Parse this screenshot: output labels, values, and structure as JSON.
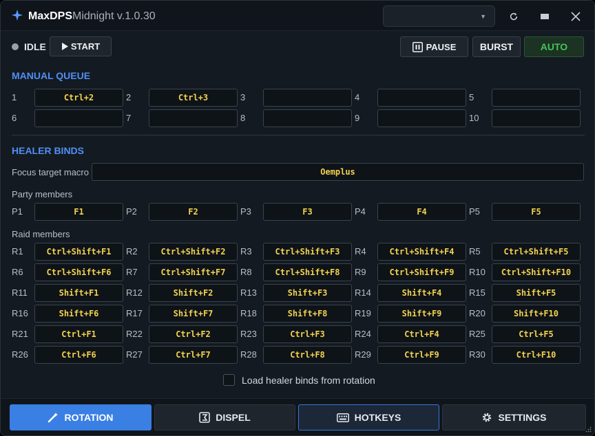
{
  "app": {
    "name": "MaxDPS",
    "subtitle": "Midnight v.1.0.30"
  },
  "profile_select": {
    "value": ""
  },
  "status": {
    "text": "IDLE"
  },
  "buttons": {
    "start": "START",
    "pause": "PAUSE",
    "burst": "BURST",
    "auto": "AUTO"
  },
  "manual_queue": {
    "title": "MANUAL QUEUE",
    "slots": [
      {
        "num": "1",
        "key": "Ctrl+2"
      },
      {
        "num": "2",
        "key": "Ctrl+3"
      },
      {
        "num": "3",
        "key": ""
      },
      {
        "num": "4",
        "key": ""
      },
      {
        "num": "5",
        "key": ""
      },
      {
        "num": "6",
        "key": ""
      },
      {
        "num": "7",
        "key": ""
      },
      {
        "num": "8",
        "key": ""
      },
      {
        "num": "9",
        "key": ""
      },
      {
        "num": "10",
        "key": ""
      }
    ]
  },
  "healer_binds": {
    "title": "HEALER BINDS",
    "focus_label": "Focus target macro",
    "focus_value": "Oemplus",
    "party_label": "Party members",
    "party": [
      {
        "id": "P1",
        "key": "F1"
      },
      {
        "id": "P2",
        "key": "F2"
      },
      {
        "id": "P3",
        "key": "F3"
      },
      {
        "id": "P4",
        "key": "F4"
      },
      {
        "id": "P5",
        "key": "F5"
      }
    ],
    "raid_label": "Raid members",
    "raid": [
      {
        "id": "R1",
        "key": "Ctrl+Shift+F1"
      },
      {
        "id": "R2",
        "key": "Ctrl+Shift+F2"
      },
      {
        "id": "R3",
        "key": "Ctrl+Shift+F3"
      },
      {
        "id": "R4",
        "key": "Ctrl+Shift+F4"
      },
      {
        "id": "R5",
        "key": "Ctrl+Shift+F5"
      },
      {
        "id": "R6",
        "key": "Ctrl+Shift+F6"
      },
      {
        "id": "R7",
        "key": "Ctrl+Shift+F7"
      },
      {
        "id": "R8",
        "key": "Ctrl+Shift+F8"
      },
      {
        "id": "R9",
        "key": "Ctrl+Shift+F9"
      },
      {
        "id": "R10",
        "key": "Ctrl+Shift+F10"
      },
      {
        "id": "R11",
        "key": "Shift+F1"
      },
      {
        "id": "R12",
        "key": "Shift+F2"
      },
      {
        "id": "R13",
        "key": "Shift+F3"
      },
      {
        "id": "R14",
        "key": "Shift+F4"
      },
      {
        "id": "R15",
        "key": "Shift+F5"
      },
      {
        "id": "R16",
        "key": "Shift+F6"
      },
      {
        "id": "R17",
        "key": "Shift+F7"
      },
      {
        "id": "R18",
        "key": "Shift+F8"
      },
      {
        "id": "R19",
        "key": "Shift+F9"
      },
      {
        "id": "R20",
        "key": "Shift+F10"
      },
      {
        "id": "R21",
        "key": "Ctrl+F1"
      },
      {
        "id": "R22",
        "key": "Ctrl+F2"
      },
      {
        "id": "R23",
        "key": "Ctrl+F3"
      },
      {
        "id": "R24",
        "key": "Ctrl+F4"
      },
      {
        "id": "R25",
        "key": "Ctrl+F5"
      },
      {
        "id": "R26",
        "key": "Ctrl+F6"
      },
      {
        "id": "R27",
        "key": "Ctrl+F7"
      },
      {
        "id": "R28",
        "key": "Ctrl+F8"
      },
      {
        "id": "R29",
        "key": "Ctrl+F9"
      },
      {
        "id": "R30",
        "key": "Ctrl+F10"
      }
    ],
    "load_from_rotation_label": "Load healer binds from rotation",
    "load_from_rotation_checked": false
  },
  "nav": {
    "tabs": [
      {
        "label": "ROTATION",
        "icon": "wand-icon",
        "active": true
      },
      {
        "label": "DISPEL",
        "icon": "dispel-icon",
        "active": false
      },
      {
        "label": "HOTKEYS",
        "icon": "keyboard-icon",
        "active": false
      },
      {
        "label": "SETTINGS",
        "icon": "gear-icon",
        "active": false
      }
    ]
  },
  "colors": {
    "accent": "#3a7fe3",
    "key_text": "#f3d24e",
    "auto_green": "#44c45b",
    "section_blue": "#4f8ff7"
  }
}
